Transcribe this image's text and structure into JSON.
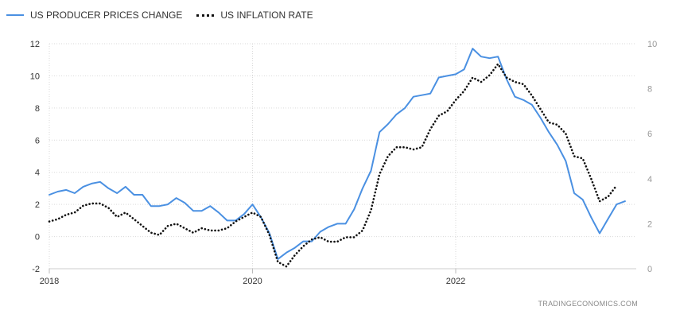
{
  "legend": {
    "series1": "US PRODUCER PRICES CHANGE",
    "series2": "US INFLATION RATE"
  },
  "source": "TRADINGECONOMICS.COM",
  "colors": {
    "ppi": "#4a90e2",
    "cpi": "#111111",
    "grid": "#d9d9d9"
  },
  "chart_data": {
    "type": "line",
    "title": "",
    "x_range": [
      "2018-01",
      "2023-09"
    ],
    "x_ticks": [
      "2018",
      "2020",
      "2022"
    ],
    "y_left": {
      "range": [
        -2,
        12
      ],
      "ticks": [
        "-2",
        "0",
        "2",
        "4",
        "6",
        "8",
        "10",
        "12"
      ]
    },
    "y_right": {
      "range": [
        0,
        10
      ],
      "ticks": [
        "0",
        "2",
        "4",
        "6",
        "8",
        "10"
      ]
    },
    "grid": true,
    "legend_position": "top-left",
    "series": [
      {
        "name": "US PRODUCER PRICES CHANGE",
        "axis": "left",
        "style": "solid",
        "start": "2018-01",
        "values": [
          2.6,
          2.8,
          2.9,
          2.7,
          3.1,
          3.3,
          3.4,
          3.0,
          2.7,
          3.1,
          2.6,
          2.6,
          1.9,
          1.9,
          2.0,
          2.4,
          2.1,
          1.6,
          1.6,
          1.9,
          1.5,
          1.0,
          1.0,
          1.4,
          2.0,
          1.2,
          0.2,
          -1.4,
          -1.0,
          -0.7,
          -0.3,
          -0.3,
          0.3,
          0.6,
          0.8,
          0.8,
          1.7,
          3.0,
          4.1,
          6.5,
          7.0,
          7.6,
          8.0,
          8.7,
          8.8,
          8.9,
          9.9,
          10.0,
          10.1,
          10.4,
          11.7,
          11.2,
          11.1,
          11.2,
          9.8,
          8.7,
          8.5,
          8.2,
          7.4,
          6.5,
          5.7,
          4.7,
          2.7,
          2.3,
          1.2,
          0.2,
          1.1,
          2.0,
          2.2
        ]
      },
      {
        "name": "US INFLATION RATE",
        "axis": "right",
        "style": "dotted",
        "start": "2018-01",
        "values": [
          2.1,
          2.2,
          2.4,
          2.5,
          2.8,
          2.9,
          2.9,
          2.7,
          2.3,
          2.5,
          2.2,
          1.9,
          1.6,
          1.5,
          1.9,
          2.0,
          1.8,
          1.6,
          1.8,
          1.7,
          1.7,
          1.8,
          2.1,
          2.3,
          2.5,
          2.3,
          1.5,
          0.3,
          0.1,
          0.6,
          1.0,
          1.3,
          1.4,
          1.2,
          1.2,
          1.4,
          1.4,
          1.7,
          2.6,
          4.2,
          5.0,
          5.4,
          5.4,
          5.3,
          5.4,
          6.2,
          6.8,
          7.0,
          7.5,
          7.9,
          8.5,
          8.3,
          8.6,
          9.1,
          8.5,
          8.3,
          8.2,
          7.7,
          7.1,
          6.5,
          6.4,
          6.0,
          5.0,
          4.9,
          4.0,
          3.0,
          3.2,
          3.7
        ]
      }
    ]
  }
}
